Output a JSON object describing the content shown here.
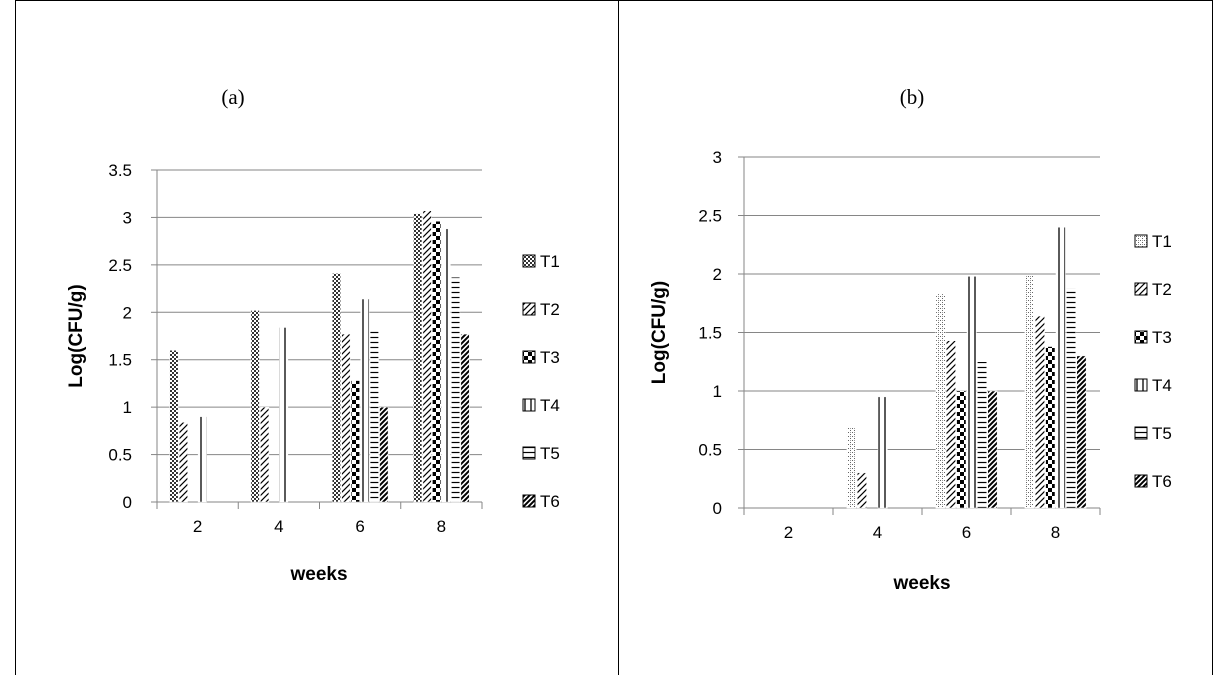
{
  "chart_data": [
    {
      "type": "bar",
      "title": "(a)",
      "xlabel": "weeks",
      "ylabel": "Log(CFU/g)",
      "ylim": [
        0,
        3.5
      ],
      "yticks": [
        "0",
        "0.5",
        "1",
        "1.5",
        "2",
        "2.5",
        "3",
        "3.5"
      ],
      "categories": [
        "2",
        "4",
        "6",
        "8"
      ],
      "grid": true,
      "legend_position": "right",
      "series": [
        {
          "name": "T1",
          "values": [
            1.6,
            2.02,
            2.41,
            3.04
          ]
        },
        {
          "name": "T2",
          "values": [
            0.84,
            1.0,
            1.77,
            3.07
          ]
        },
        {
          "name": "T3",
          "values": [
            0,
            0,
            1.28,
            2.96
          ]
        },
        {
          "name": "T4",
          "values": [
            0.9,
            1.84,
            2.14,
            2.88
          ]
        },
        {
          "name": "T5",
          "values": [
            0,
            0,
            1.81,
            2.37
          ]
        },
        {
          "name": "T6",
          "values": [
            0,
            0,
            1.0,
            1.77
          ]
        }
      ]
    },
    {
      "type": "bar",
      "title": "(b)",
      "xlabel": "weeks",
      "ylabel": "Log(CFU/g)",
      "ylim": [
        0,
        3
      ],
      "yticks": [
        "0",
        "0.5",
        "1",
        "1.5",
        "2",
        "2.5",
        "3"
      ],
      "categories": [
        "2",
        "4",
        "6",
        "8"
      ],
      "grid": true,
      "legend_position": "right",
      "series": [
        {
          "name": "T1",
          "values": [
            0,
            0.69,
            1.83,
            1.99
          ]
        },
        {
          "name": "T2",
          "values": [
            0,
            0.3,
            1.43,
            1.64
          ]
        },
        {
          "name": "T3",
          "values": [
            0,
            0,
            1.0,
            1.38
          ]
        },
        {
          "name": "T4",
          "values": [
            0,
            0.95,
            1.98,
            2.4
          ]
        },
        {
          "name": "T5",
          "values": [
            0,
            0,
            1.25,
            1.88
          ]
        },
        {
          "name": "T6",
          "values": [
            0,
            0,
            1.0,
            1.3
          ]
        }
      ]
    }
  ]
}
